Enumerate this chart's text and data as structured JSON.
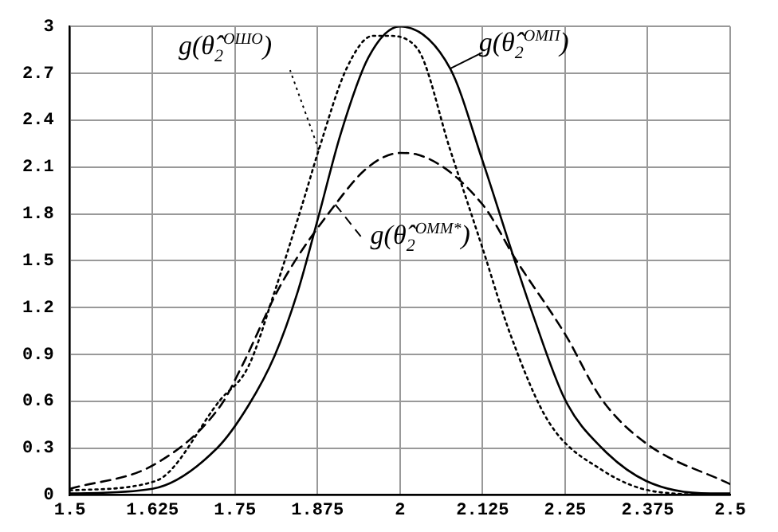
{
  "chart_data": {
    "type": "line",
    "xlim": [
      1.5,
      2.5
    ],
    "xticks": [
      1.5,
      1.625,
      1.75,
      1.875,
      2,
      2.125,
      2.25,
      2.375,
      2.5
    ],
    "ylim": [
      0,
      3
    ],
    "yticks": [
      0,
      0.3,
      0.6,
      0.9,
      1.2,
      1.5,
      1.8,
      2.1,
      2.4,
      2.7,
      3
    ],
    "grid": true,
    "legend": "top",
    "marker": "none",
    "series": [
      {
        "name": "g(θ̂$_{2}$$^{ОМП}$)",
        "color": "#000000",
        "line_style": "solid",
        "x": [
          1.5,
          1.625,
          1.723,
          1.77,
          1.81,
          1.845,
          1.877,
          1.91,
          1.952,
          2.0,
          2.076,
          2.125,
          2.17,
          2.2,
          2.25,
          2.306,
          2.373,
          2.47,
          2.5
        ],
        "values": [
          0.01,
          0.04,
          0.3,
          0.57,
          0.89,
          1.3,
          1.79,
          2.31,
          2.8,
          3.0,
          2.73,
          2.14,
          1.55,
          1.17,
          0.61,
          0.3,
          0.09,
          0.01,
          0.01
        ]
      },
      {
        "name": "g(θ̂$_{2}$$^{ОШО}$)",
        "color": "#000000",
        "line_style": "dotted",
        "x": [
          1.5,
          1.63,
          1.728,
          1.77,
          1.81,
          1.852,
          1.877,
          1.919,
          1.959,
          1.98,
          2.026,
          2.076,
          2.125,
          2.167,
          2.225,
          2.306,
          2.39,
          2.5
        ],
        "values": [
          0.03,
          0.09,
          0.61,
          0.82,
          1.3,
          1.86,
          2.21,
          2.73,
          2.94,
          2.94,
          2.86,
          2.21,
          1.58,
          1.03,
          0.47,
          0.16,
          0.02,
          0.0
        ]
      },
      {
        "name": "g(θ̂$_{2}$$^{ОММ*}$)",
        "color": "#000000",
        "line_style": "dashed",
        "x": [
          1.5,
          1.63,
          1.728,
          1.76,
          1.82,
          1.902,
          1.952,
          2.0,
          2.026,
          2.125,
          2.175,
          2.25,
          2.306,
          2.373,
          2.5
        ],
        "values": [
          0.04,
          0.2,
          0.57,
          0.82,
          1.35,
          1.86,
          2.1,
          2.19,
          2.18,
          1.86,
          1.51,
          1.03,
          0.61,
          0.33,
          0.07
        ]
      }
    ]
  }
}
